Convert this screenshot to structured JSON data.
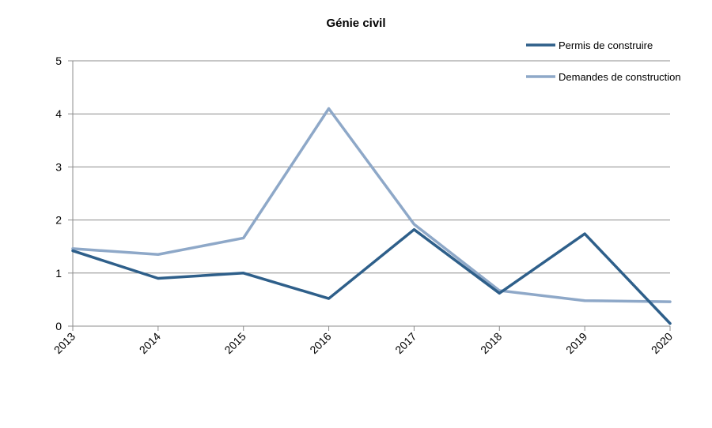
{
  "chart_data": {
    "type": "line",
    "title": "Génie civil",
    "categories": [
      "2013",
      "2014",
      "2015",
      "2016",
      "2017",
      "2018",
      "2019",
      "2020"
    ],
    "ylim": [
      0,
      5
    ],
    "yticks": [
      "0",
      "1",
      "2",
      "3",
      "4",
      "5"
    ],
    "grid": true,
    "legend_position": "top-right",
    "series": [
      {
        "name": "Permis de construire",
        "color": "#2e5f8a",
        "values": [
          1.42,
          0.9,
          1.0,
          0.52,
          1.82,
          0.62,
          1.74,
          0.05
        ]
      },
      {
        "name": "Demandes de construction",
        "color": "#8ea8c8",
        "values": [
          1.46,
          1.35,
          1.66,
          4.1,
          1.92,
          0.67,
          0.48,
          0.46
        ]
      }
    ]
  }
}
